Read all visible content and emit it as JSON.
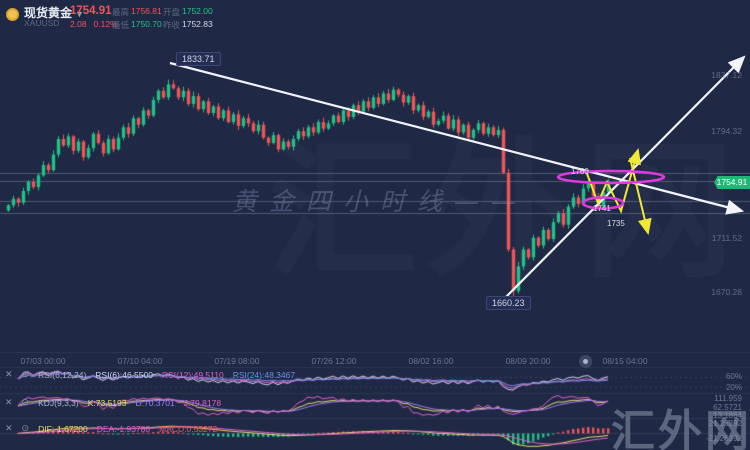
{
  "header": {
    "instrument_name": "现货黄金",
    "symbol": "XAUUSD",
    "price": "1754.91",
    "change": "2.08",
    "change_pct": "0.12%",
    "stats": [
      {
        "label": "最高",
        "value": "1756.81",
        "tone": "up"
      },
      {
        "label": "开盘",
        "value": "1752.00",
        "tone": "down"
      },
      {
        "label": "最低",
        "value": "1750.70",
        "tone": "down"
      },
      {
        "label": "昨收",
        "value": "1752.83",
        "tone": "flat"
      }
    ]
  },
  "colors": {
    "background": "#1f2945",
    "bull_candle": "#22c186",
    "bear_candle": "#ef5656",
    "up_text": "#ef5656",
    "down_text": "#22c186",
    "trendline": "#f2f4fa",
    "drawing_yellow": "#f0e832",
    "drawing_magenta": "#e238e2",
    "badge_green": "#21b877"
  },
  "main_chart": {
    "peak_label": "1833.71",
    "low_label": "1660.23",
    "current_price": "1754.91",
    "price_axis": [
      "1837.12",
      "1794.32",
      "1711.52",
      "1670.28"
    ],
    "sr_lines": [
      1761.8,
      1755.7,
      1740.3,
      1731.1
    ],
    "drawing_labels": {
      "r1": "1760",
      "s1": "1741",
      "s2": "1735"
    }
  },
  "time_axis": {
    "labels": [
      "07/03 00:00",
      "07/10 04:00",
      "07/19 08:00",
      "07/26 12:00",
      "08/02 16:00",
      "08/09 20:00",
      "08/15 04:00"
    ]
  },
  "chart_data": {
    "type": "candlestick",
    "symbol": "XAUUSD",
    "period": "4h",
    "closes": [
      1737,
      1742,
      1739,
      1748,
      1755,
      1751,
      1760,
      1768,
      1764,
      1776,
      1788,
      1783,
      1790,
      1779,
      1786,
      1774,
      1781,
      1792,
      1785,
      1777,
      1788,
      1780,
      1789,
      1797,
      1792,
      1804,
      1799,
      1810,
      1806,
      1818,
      1825,
      1820,
      1830,
      1827,
      1820,
      1825,
      1815,
      1821,
      1811,
      1817,
      1808,
      1813,
      1804,
      1810,
      1801,
      1807,
      1798,
      1804,
      1800,
      1794,
      1799,
      1789,
      1785,
      1791,
      1780,
      1786,
      1782,
      1788,
      1794,
      1790,
      1797,
      1793,
      1801,
      1796,
      1800,
      1806,
      1801,
      1810,
      1805,
      1814,
      1809,
      1817,
      1812,
      1820,
      1815,
      1823,
      1818,
      1826,
      1822,
      1816,
      1821,
      1810,
      1814,
      1805,
      1809,
      1799,
      1802,
      1806,
      1796,
      1803,
      1793,
      1799,
      1789,
      1795,
      1800,
      1792,
      1797,
      1791,
      1795,
      1762,
      1703,
      1671,
      1690,
      1703,
      1697,
      1712,
      1706,
      1718,
      1711,
      1724,
      1731,
      1722,
      1736,
      1743,
      1738,
      1750,
      1754,
      1744,
      1736,
      1747,
      1754.91
    ],
    "wick_overrides": {
      "32": {
        "high": 1833.71
      },
      "101": {
        "low": 1660.23
      }
    },
    "high_label": "1833.71",
    "low_label": "1660.23"
  },
  "indicators": {
    "rsi": {
      "tokens": [
        {
          "text": "RSI(6,12,24)",
          "color": "#aeb6cc"
        },
        {
          "text": "RSI(6):46.5500",
          "color": "#cdd4e6"
        },
        {
          "text": "RSI(12):49.5110",
          "color": "#e05fc8"
        },
        {
          "text": "RSI(24):48.3467",
          "color": "#6f8fe8"
        }
      ],
      "axis": [
        "60%",
        "20%"
      ],
      "params": [
        6,
        12,
        24
      ],
      "line_colors": [
        "#cdd4e6",
        "#e05fc8",
        "#6f8fe8"
      ]
    },
    "kdj": {
      "tokens": [
        {
          "text": "KDJ(9,3,3)",
          "color": "#aeb6cc"
        },
        {
          "text": "K:73.5193",
          "color": "#e6d96b"
        },
        {
          "text": "D:70.3701",
          "color": "#9a7bf0"
        },
        {
          "text": "J:79.8178",
          "color": "#e05fc8"
        }
      ],
      "axis": [
        "111.959",
        "62.5721",
        "13.1864"
      ],
      "line_colors": [
        "#e6d96b",
        "#9a7bf0",
        "#e05fc8"
      ]
    },
    "macd": {
      "tokens": [
        {
          "text": "DIF:-1.67200",
          "color": "#e6d96b"
        },
        {
          "text": "DEA:-1.93788",
          "color": "#e05fc8"
        },
        {
          "text": "MACD:0.53272",
          "color": "#ef5656"
        }
      ],
      "axis": [
        "21.26392",
        "-21.26392"
      ],
      "line_colors": [
        "#e6d96b",
        "#e05fc8"
      ]
    }
  },
  "watermarks": {
    "center": "黄金四小时线——",
    "corner": "汇外网",
    "big_faint": "汇外网"
  }
}
